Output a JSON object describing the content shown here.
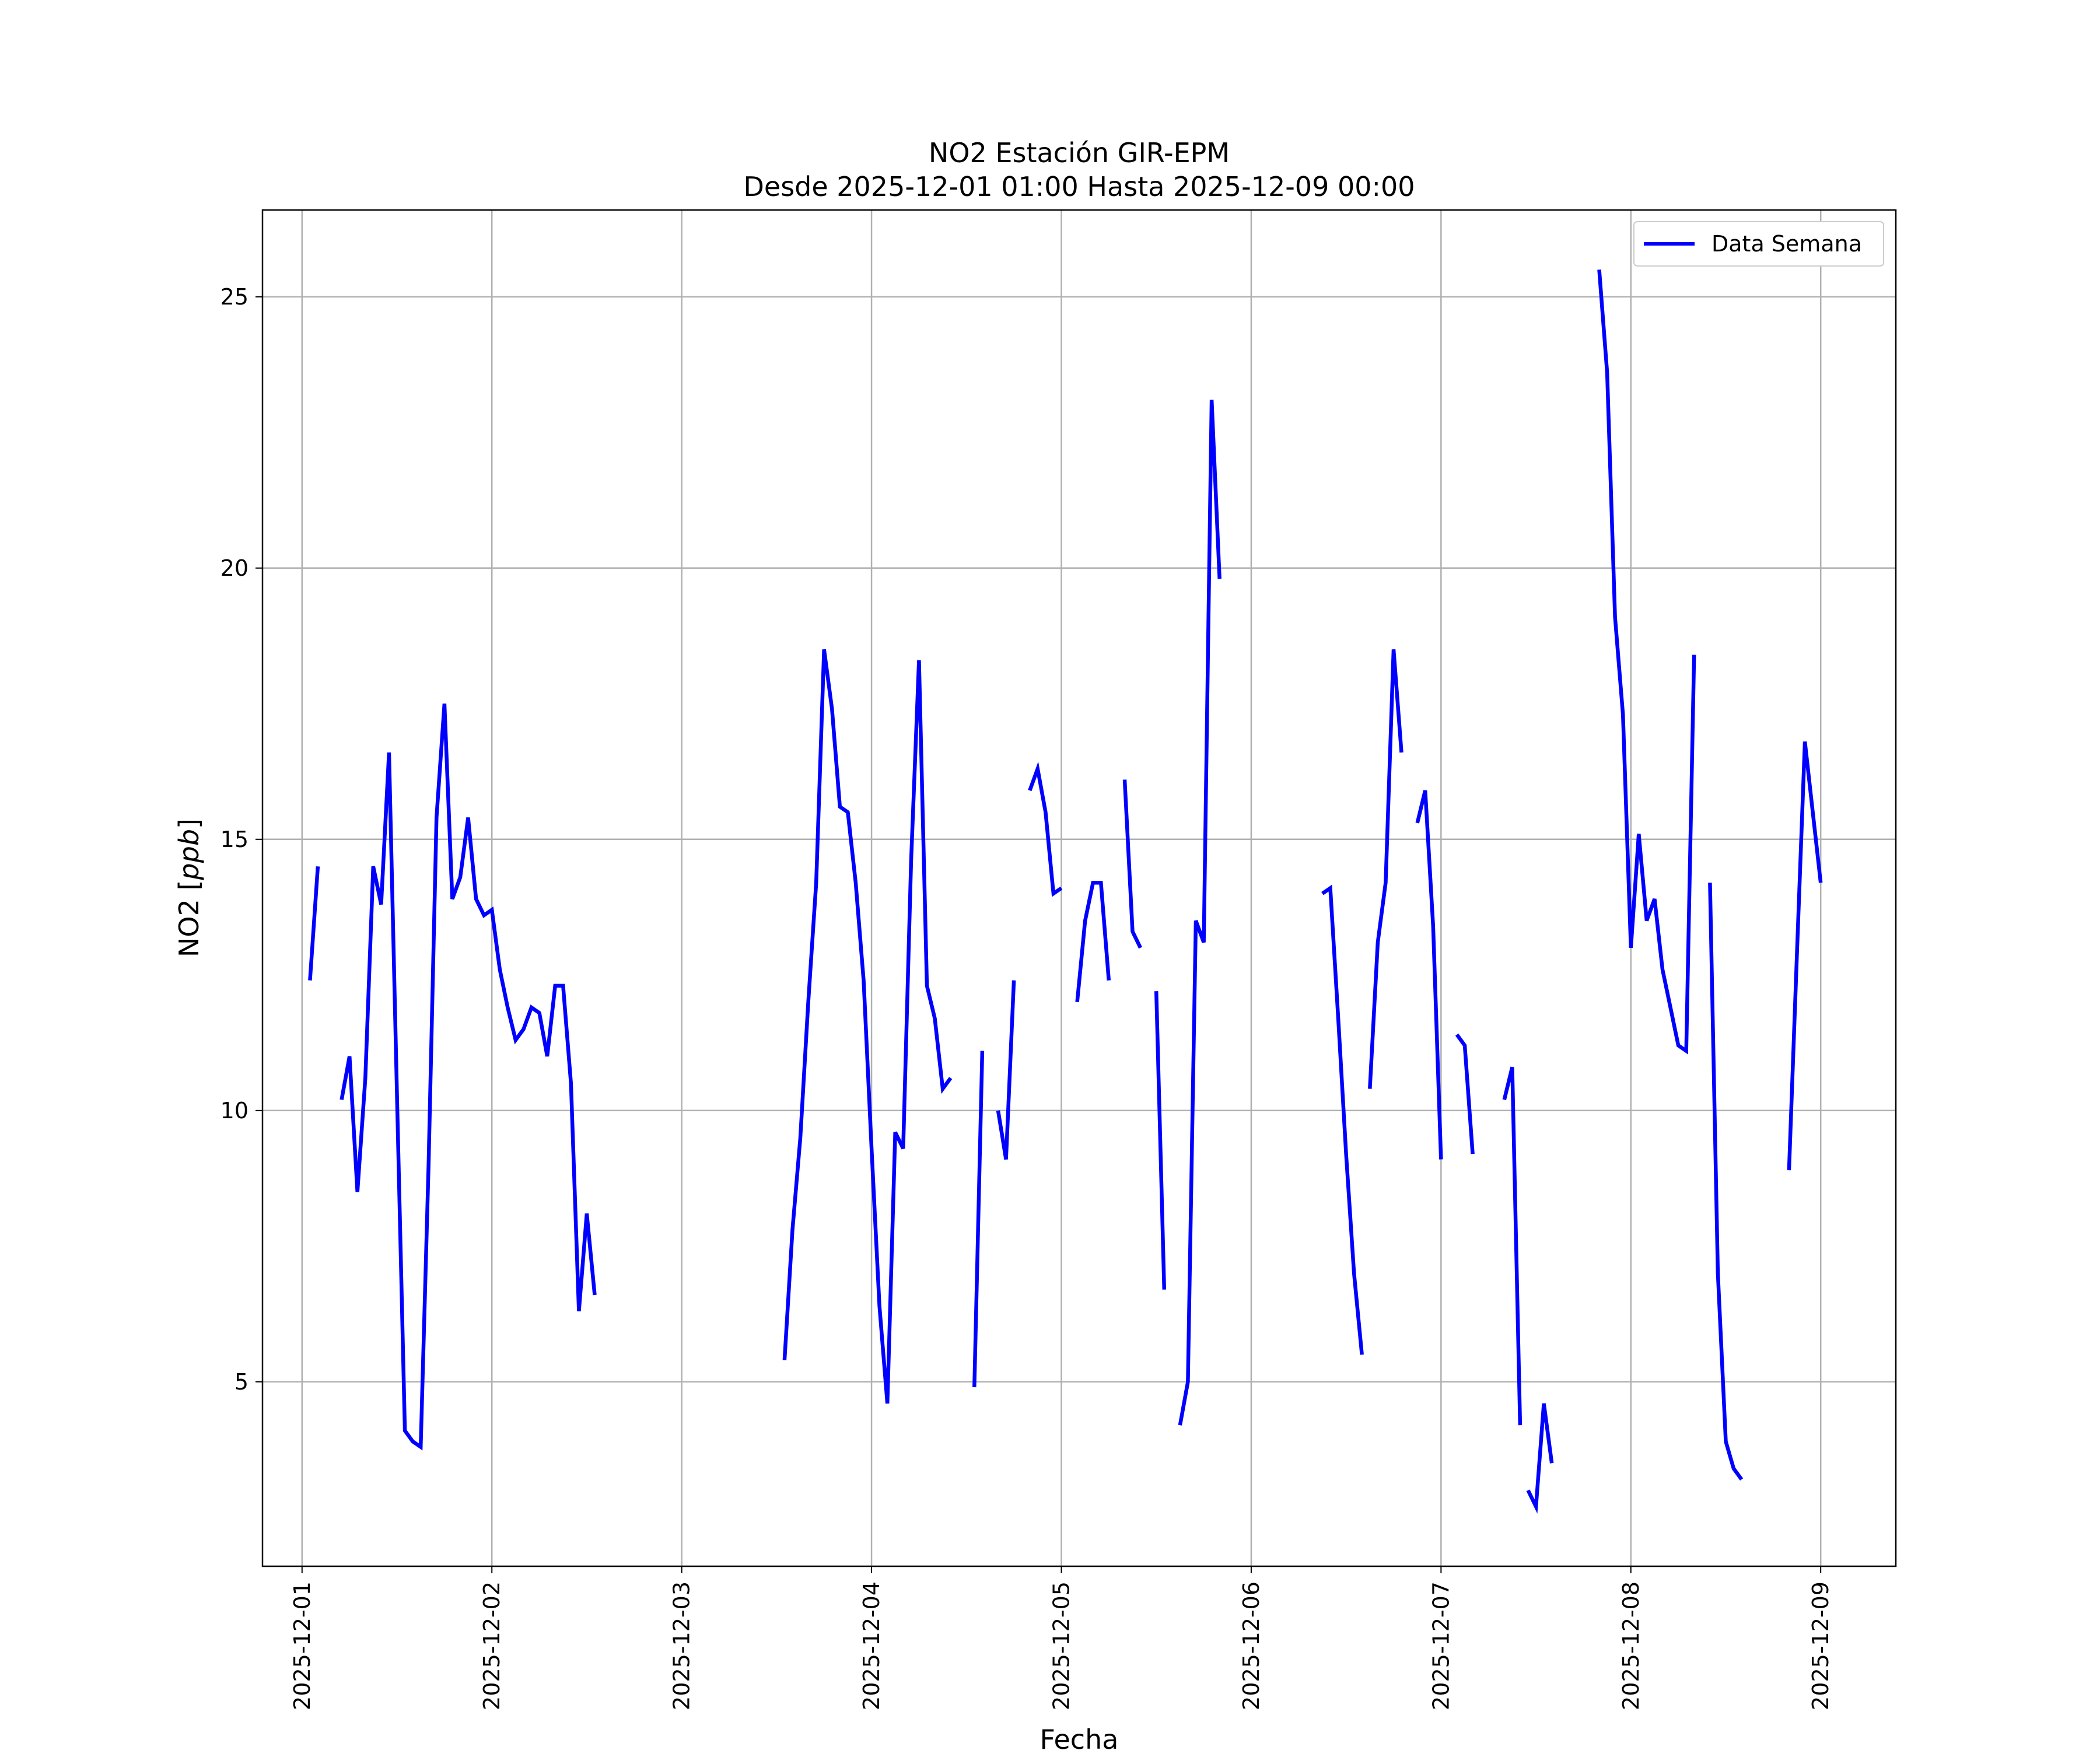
{
  "chart_data": {
    "type": "line",
    "title": "NO2 Estación GIR-EPM",
    "subtitle": "Desde 2025-12-01 01:00 Hasta 2025-12-09 00:00",
    "xlabel": "Fecha",
    "ylabel": "NO2 [ppb]",
    "xlim": [
      "2025-11-30 19:00",
      "2025-12-09 09:30"
    ],
    "ylim": [
      1.6,
      26.6
    ],
    "x_ticks": [
      "2025-12-01",
      "2025-12-02",
      "2025-12-03",
      "2025-12-04",
      "2025-12-05",
      "2025-12-06",
      "2025-12-07",
      "2025-12-08",
      "2025-12-09"
    ],
    "y_ticks": [
      5,
      10,
      15,
      20,
      25
    ],
    "grid": true,
    "legend_position": "top-right",
    "colors": {
      "line": "#0000ff",
      "grid": "#b0b0b0",
      "frame": "#000000"
    },
    "series": [
      {
        "name": "Data Semana",
        "segments": [
          {
            "start": "2025-12-01 01:00",
            "values": [
              12.4,
              14.5
            ]
          },
          {
            "start": "2025-12-01 05:00",
            "values": [
              10.2,
              11.0,
              8.5,
              10.6,
              14.5,
              13.8,
              16.6,
              10.3,
              4.1,
              3.9,
              3.8,
              9.0,
              15.4,
              17.5,
              13.9,
              14.3,
              15.4,
              13.9,
              13.6,
              13.7,
              12.6,
              11.9,
              11.3,
              11.5,
              11.9,
              11.8,
              11.0,
              12.3,
              12.3,
              10.5,
              6.3,
              8.1,
              6.6
            ]
          }
        ]
      },
      {
        "name": "Data Semana",
        "segments": [
          {
            "start": "2025-12-03 13:00",
            "values": [
              5.4,
              7.8,
              9.5,
              12.0,
              14.2,
              18.5,
              17.4,
              15.6,
              15.5,
              14.2,
              12.4,
              9.3,
              6.4,
              4.6,
              9.6,
              9.3,
              14.6,
              18.3,
              12.3,
              11.7,
              10.4,
              10.6
            ]
          },
          {
            "start": "2025-12-04 13:00",
            "values": [
              4.9,
              11.1
            ]
          },
          {
            "start": "2025-12-04 16:00",
            "values": [
              10.0,
              9.1,
              12.4
            ]
          },
          {
            "start": "2025-12-04 20:00",
            "values": [
              15.9,
              16.3,
              15.5,
              14.0,
              14.1
            ]
          },
          {
            "start": "2025-12-05 02:00",
            "values": [
              12.0,
              13.5,
              14.2,
              14.2,
              12.4
            ]
          },
          {
            "start": "2025-12-05 08:00",
            "values": [
              16.1,
              13.3,
              13.0
            ]
          },
          {
            "start": "2025-12-05 12:00",
            "values": [
              12.2,
              6.7
            ]
          },
          {
            "start": "2025-12-05 15:00",
            "values": [
              4.2,
              5.0,
              13.5,
              13.1,
              23.1,
              19.8
            ]
          }
        ]
      },
      {
        "name": "Data Semana",
        "segments": [
          {
            "start": "2025-12-06 09:00",
            "values": [
              14.0,
              14.1,
              11.7,
              9.2,
              7.0,
              5.5
            ]
          },
          {
            "start": "2025-12-06 15:00",
            "values": [
              10.4,
              13.1,
              14.2,
              18.5,
              16.6
            ]
          },
          {
            "start": "2025-12-06 21:00",
            "values": [
              15.3,
              15.9,
              13.4,
              9.1
            ]
          },
          {
            "start": "2025-12-07 02:00",
            "values": [
              11.4,
              11.2,
              9.2
            ]
          },
          {
            "start": "2025-12-07 08:00",
            "values": [
              10.2,
              10.8,
              4.2
            ]
          },
          {
            "start": "2025-12-07 11:00",
            "values": [
              3.0,
              2.7,
              4.6,
              3.5
            ]
          },
          {
            "start": "2025-12-07 20:00",
            "values": [
              25.5,
              23.6,
              19.1,
              17.3,
              13.0,
              15.1,
              13.5,
              13.9,
              12.6,
              11.9,
              11.2,
              11.1,
              18.4
            ]
          },
          {
            "start": "2025-12-08 10:00",
            "values": [
              14.2,
              7.0,
              3.9,
              3.4,
              3.2
            ]
          },
          {
            "start": "2025-12-08 20:00",
            "values": [
              8.9,
              12.9,
              16.8,
              15.5,
              14.2
            ]
          }
        ]
      }
    ]
  }
}
